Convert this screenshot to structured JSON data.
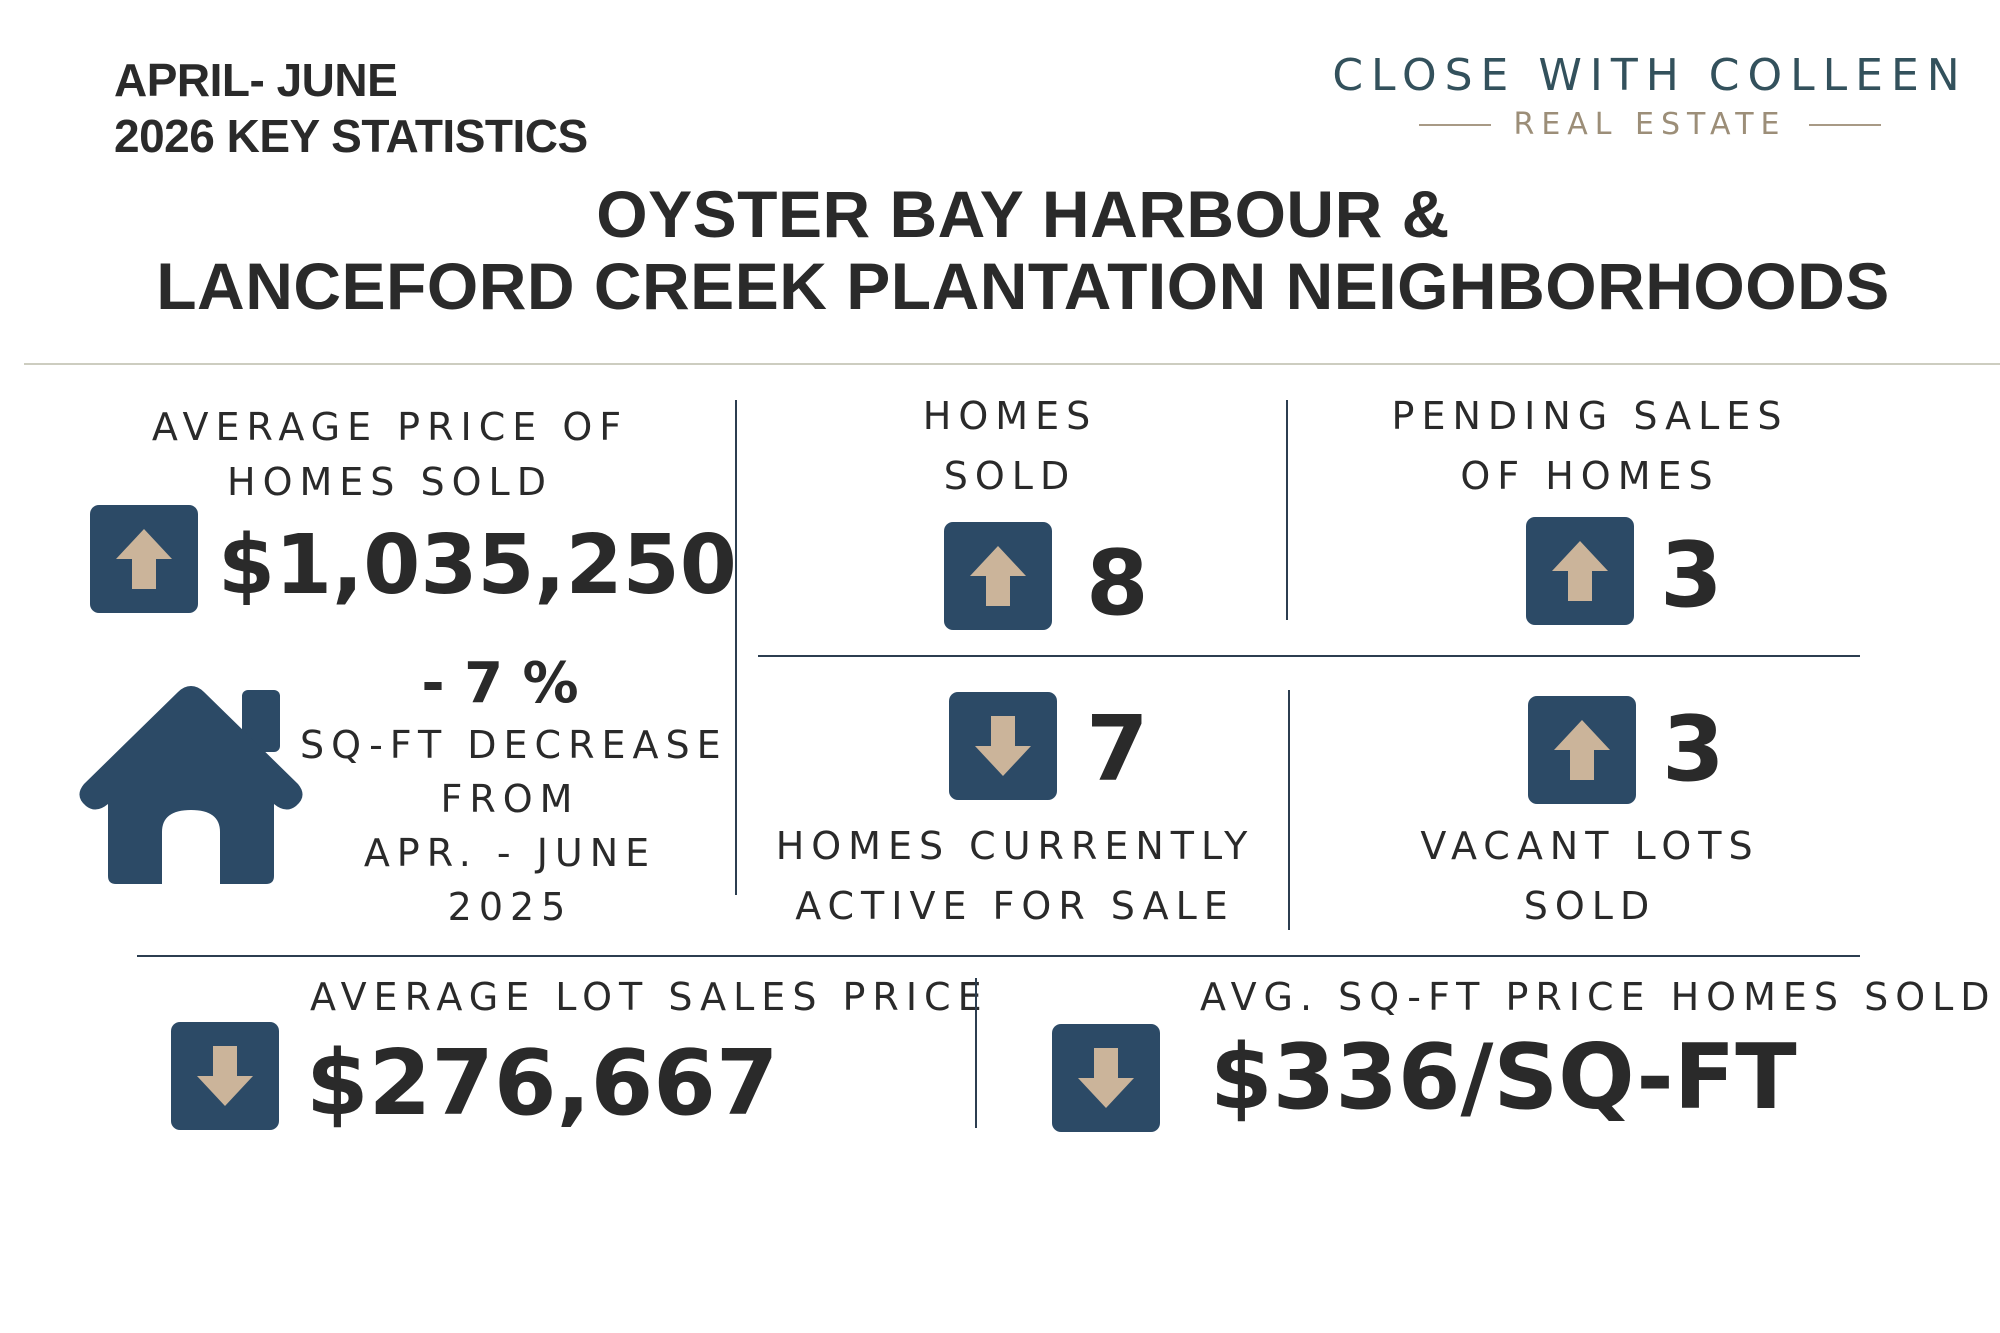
{
  "header": {
    "period_line1": "APRIL- JUNE",
    "period_line2": "2026 KEY STATISTICS",
    "brand_name": "CLOSE WITH COLLEEN",
    "brand_sub": "REAL ESTATE",
    "title_line1": "OYSTER BAY HARBOUR &",
    "title_line2": "LANCEFORD CREEK PLANTATION NEIGHBORHOODS"
  },
  "avg_price": {
    "label_line1": "AVERAGE PRICE OF",
    "label_line2": "HOMES SOLD",
    "value": "$1,035,250",
    "trend": "up"
  },
  "sqft_change": {
    "value": "- 7 %",
    "line1": "SQ-FT DECREASE",
    "line2": "FROM",
    "line3": "APR. - JUNE",
    "line4": "2025",
    "icon": "house-icon"
  },
  "homes_sold": {
    "label_line1": "HOMES",
    "label_line2": "SOLD",
    "value": "8",
    "trend": "up"
  },
  "pending_sales": {
    "label_line1": "PENDING SALES",
    "label_line2": "OF HOMES",
    "value": "3",
    "trend": "up"
  },
  "active_for_sale": {
    "value": "7",
    "label_line1": "HOMES CURRENTLY",
    "label_line2": "ACTIVE FOR SALE",
    "trend": "down"
  },
  "vacant_lots": {
    "value": "3",
    "label_line1": "VACANT LOTS",
    "label_line2": "SOLD",
    "trend": "up"
  },
  "avg_lot_price": {
    "label": "AVERAGE LOT SALES PRICE",
    "value": "$276,667",
    "trend": "down"
  },
  "avg_sqft_price": {
    "label": "AVG. SQ-FT PRICE HOMES SOLD",
    "value": "$336/SQ-FT",
    "trend": "down"
  },
  "colors": {
    "icon_box": "#2c4a66",
    "arrow": "#cbb49a",
    "text": "#2a2a2a",
    "brand": "#33515c",
    "brand_sub": "#9c8e78"
  }
}
